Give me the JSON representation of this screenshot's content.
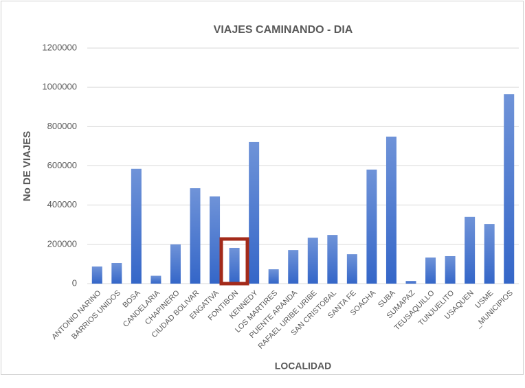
{
  "chart_data": {
    "type": "bar",
    "title": "VIAJES CAMINANDO - DIA",
    "x_label": "LOCALIDAD",
    "y_label": "No DE VIAJES",
    "categories": [
      "ANTONIO NARINO",
      "BARRIOS UNIDOS",
      "BOSA",
      "CANDELARIA",
      "CHAPINERO",
      "CIUDAD BOLIVAR",
      "ENGATIVA",
      "FONTIBON",
      "KENNEDY",
      "LOS MARTIRES",
      "PUENTE ARANDA",
      "RAFAEL URIBE URIBE",
      "SAN CRISTOBAL",
      "SANTA FE",
      "SOACHA",
      "SUBA",
      "SUMAPAZ",
      "TEUSAQUILLO",
      "TUNJUELITO",
      "USAQUEN",
      "USME",
      "_MUNICIPIOS"
    ],
    "values": [
      87000,
      105000,
      585000,
      40000,
      200000,
      486000,
      444000,
      182000,
      721000,
      73000,
      171000,
      234000,
      248000,
      150000,
      581000,
      749000,
      14000,
      133000,
      140000,
      340000,
      304000,
      965000
    ],
    "color": "#4472c4",
    "ylim": [
      0,
      1200000
    ],
    "yticks": [
      0,
      200000,
      400000,
      600000,
      800000,
      1000000,
      1200000
    ],
    "grid": true
  }
}
